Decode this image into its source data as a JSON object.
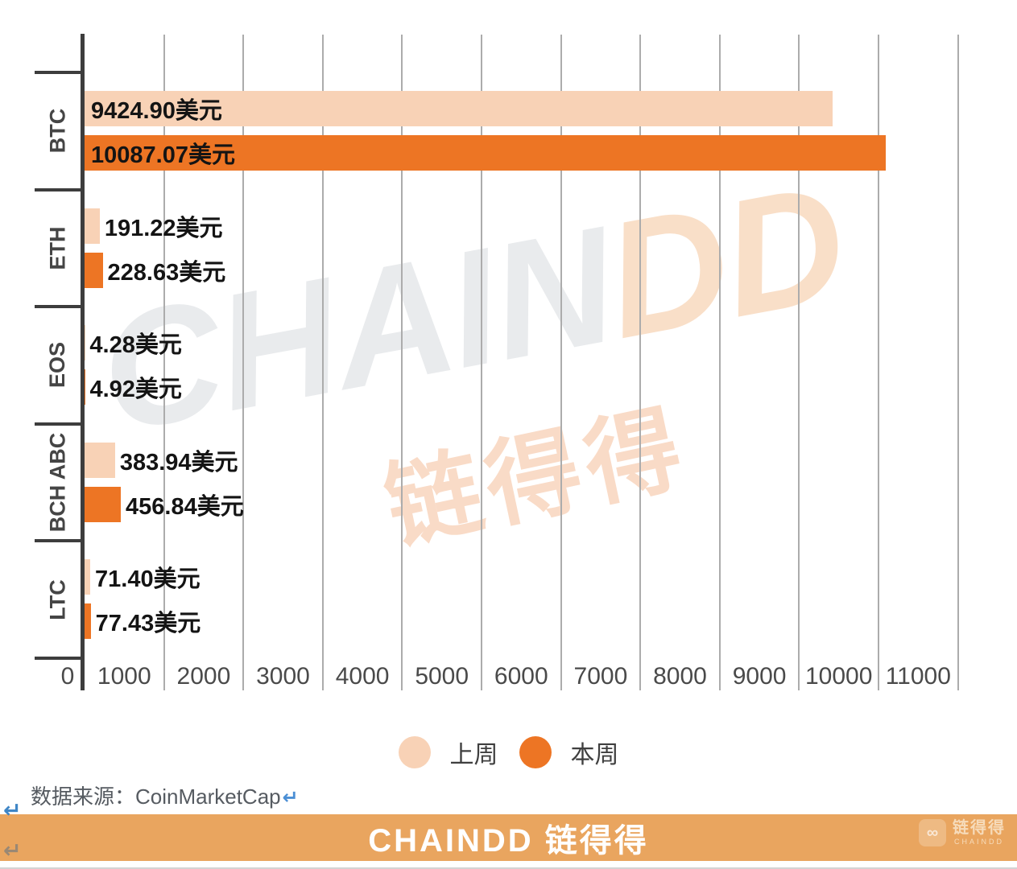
{
  "chart_data": {
    "type": "bar",
    "orientation": "horizontal",
    "title": "",
    "categories": [
      "BTC",
      "ETH",
      "EOS",
      "BCH ABC",
      "LTC"
    ],
    "series": [
      {
        "name": "上周",
        "color": "#f8d2b6",
        "values": [
          9424.9,
          191.22,
          4.28,
          383.94,
          71.4
        ]
      },
      {
        "name": "本周",
        "color": "#ed7524",
        "values": [
          10087.07,
          228.63,
          4.92,
          456.84,
          77.43
        ]
      }
    ],
    "value_labels": [
      [
        "9424.90美元",
        "191.22美元",
        "4.28美元",
        "383.94美元",
        "71.40美元"
      ],
      [
        "10087.07美元",
        "228.63美元",
        "4.92美元",
        "456.84美元",
        "77.43美元"
      ]
    ],
    "x_ticks": [
      "0",
      "1000",
      "2000",
      "3000",
      "4000",
      "5000",
      "6000",
      "7000",
      "8000",
      "9000",
      "10000",
      "11000"
    ],
    "xlim": [
      0,
      11000
    ],
    "grid": "vertical",
    "legend_position": "bottom"
  },
  "watermarks": {
    "latin_gray": "CHAIN",
    "latin_orange": "DD",
    "cn_text": "链得得"
  },
  "source_note": "数据来源：CoinMarketCap",
  "icons": {
    "return_arrow": "↵",
    "chain_link": "∞"
  },
  "footer": {
    "brand_text": "CHAINDD 链得得",
    "banner_color": "#e9a55f",
    "logo_text": "链得得",
    "logo_subtext": "CHAINDD"
  }
}
